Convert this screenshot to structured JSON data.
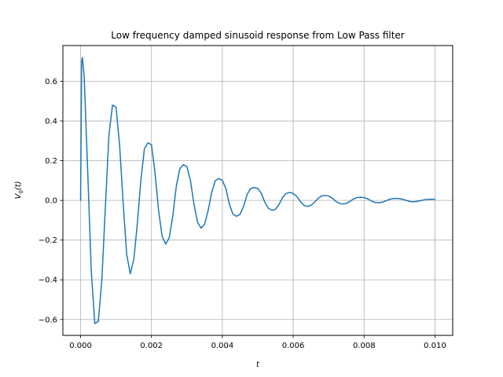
{
  "chart_data": {
    "type": "line",
    "title": "Low frequency damped sinusoid response from Low Pass filter",
    "xlabel": "t",
    "ylabel": "V_0(t)",
    "ylabel_main": "V",
    "ylabel_sub": "0",
    "ylabel_tail": "(t)",
    "xlim": [
      -0.0005,
      0.0105
    ],
    "ylim": [
      -0.68,
      0.78
    ],
    "x_ticks": [
      0.0,
      0.002,
      0.004,
      0.006,
      0.008,
      0.01
    ],
    "x_tick_labels": [
      "0.000",
      "0.002",
      "0.004",
      "0.006",
      "0.008",
      "0.010"
    ],
    "y_ticks": [
      -0.6,
      -0.4,
      -0.2,
      0.0,
      0.2,
      0.4,
      0.6
    ],
    "y_tick_labels": [
      "−0.6",
      "−0.4",
      "−0.2",
      "0.0",
      "0.2",
      "0.4",
      "0.6"
    ],
    "grid": true,
    "series": [
      {
        "color": "#1f77b4",
        "x": [
          0.0,
          3e-05,
          5e-05,
          0.0001,
          0.0002,
          0.0003,
          0.0004,
          0.0005,
          0.0006,
          0.0007,
          0.0008,
          0.0009,
          0.001,
          0.0011,
          0.0012,
          0.0013,
          0.0014,
          0.0015,
          0.0016,
          0.0017,
          0.0018,
          0.0019,
          0.002,
          0.0021,
          0.0022,
          0.0023,
          0.0024,
          0.0025,
          0.0026,
          0.0027,
          0.0028,
          0.0029,
          0.003,
          0.0031,
          0.0032,
          0.0033,
          0.0034,
          0.0035,
          0.0036,
          0.0037,
          0.0038,
          0.0039,
          0.004,
          0.0041,
          0.0042,
          0.0043,
          0.0044,
          0.0045,
          0.0046,
          0.0047,
          0.0048,
          0.0049,
          0.005,
          0.0051,
          0.0052,
          0.0053,
          0.0054,
          0.0055,
          0.0056,
          0.0057,
          0.0058,
          0.0059,
          0.006,
          0.0061,
          0.0062,
          0.0063,
          0.0064,
          0.0065,
          0.0066,
          0.0067,
          0.0068,
          0.0069,
          0.007,
          0.0071,
          0.0072,
          0.0073,
          0.0074,
          0.0075,
          0.0076,
          0.0077,
          0.0078,
          0.0079,
          0.008,
          0.0081,
          0.0082,
          0.0083,
          0.0084,
          0.0085,
          0.0086,
          0.0087,
          0.0088,
          0.0089,
          0.009,
          0.0091,
          0.0092,
          0.0093,
          0.0094,
          0.0095,
          0.0096,
          0.0097,
          0.0098,
          0.0099,
          0.01
        ],
        "y": [
          0.0,
          0.7,
          0.72,
          0.63,
          0.15,
          -0.35,
          -0.62,
          -0.61,
          -0.4,
          -0.03,
          0.33,
          0.48,
          0.47,
          0.28,
          -0.01,
          -0.27,
          -0.37,
          -0.3,
          -0.12,
          0.1,
          0.26,
          0.29,
          0.28,
          0.14,
          -0.05,
          -0.18,
          -0.22,
          -0.19,
          -0.08,
          0.07,
          0.16,
          0.18,
          0.17,
          0.1,
          -0.02,
          -0.11,
          -0.14,
          -0.12,
          -0.05,
          0.04,
          0.1,
          0.11,
          0.1,
          0.06,
          -0.02,
          -0.07,
          -0.08,
          -0.07,
          -0.03,
          0.03,
          0.06,
          0.065,
          0.06,
          0.035,
          -0.01,
          -0.04,
          -0.05,
          -0.045,
          -0.02,
          0.015,
          0.035,
          0.04,
          0.035,
          0.02,
          -0.005,
          -0.025,
          -0.03,
          -0.025,
          -0.01,
          0.01,
          0.022,
          0.025,
          0.022,
          0.012,
          -0.005,
          -0.015,
          -0.018,
          -0.015,
          -0.005,
          0.007,
          0.014,
          0.016,
          0.014,
          0.008,
          -0.002,
          -0.01,
          -0.012,
          -0.01,
          -0.003,
          0.004,
          0.009,
          0.01,
          0.009,
          0.005,
          -0.001,
          -0.006,
          -0.007,
          -0.005,
          -0.001,
          0.003,
          0.005,
          0.006,
          0.005
        ]
      }
    ]
  }
}
